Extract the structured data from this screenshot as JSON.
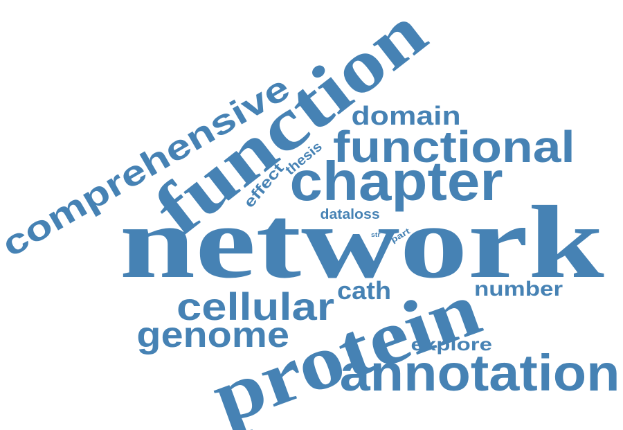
{
  "accent_color": "#4682B4",
  "words": {
    "network": "network",
    "protein": "protein",
    "function": "function",
    "annotation": "annotation",
    "chapter": "chapter",
    "functional": "functional",
    "comprehensive": "comprehensive",
    "cellular": "cellular",
    "genome": "genome",
    "domain": "domain",
    "cath": "cath",
    "number": "number",
    "explore": "explore",
    "effect": "effect",
    "thesis": "thesis",
    "dataloss": "dataloss",
    "part": "part",
    "str": "str"
  }
}
